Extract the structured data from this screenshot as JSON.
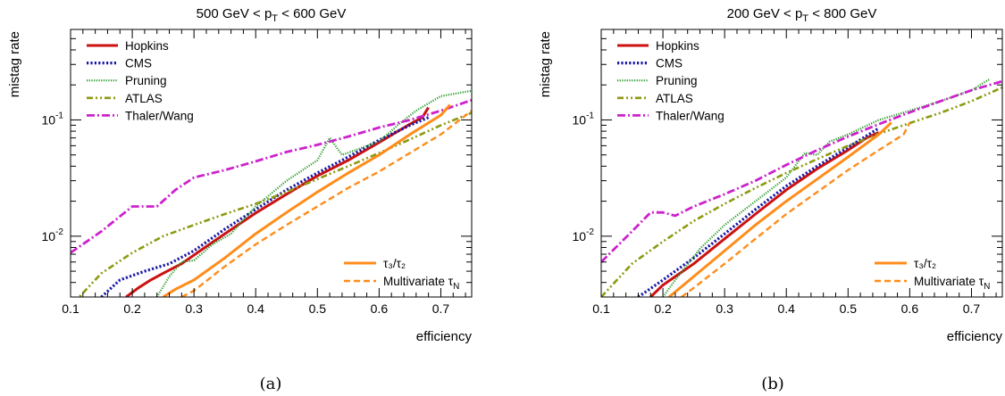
{
  "chart_data": [
    {
      "type": "line",
      "title_main": "500 GeV < p",
      "title_sub": "T",
      "title_rest": " < 600 GeV",
      "xlabel": "efficiency",
      "ylabel": "mistag rate",
      "caption": "(a)",
      "xlim": [
        0.1,
        0.75
      ],
      "ylim": [
        0.003,
        0.6
      ],
      "yscale": "log",
      "x_ticks": [
        "0.1",
        "0.2",
        "0.3",
        "0.4",
        "0.5",
        "0.6",
        "0.7"
      ],
      "y_ticks": [
        {
          "base": "10",
          "exp": "-2"
        },
        {
          "base": "10",
          "exp": "-1"
        }
      ],
      "legend_top": [
        {
          "name": "Hopkins",
          "color": "#cc1111",
          "dash": "solid"
        },
        {
          "name": "CMS",
          "color": "#1a1aa6",
          "dash": "dot"
        },
        {
          "name": "Pruning",
          "color": "#2a9a2a",
          "dash": "fine-dot"
        },
        {
          "name": "ATLAS",
          "color": "#8c9a10",
          "dash": "dash-dot-dot"
        },
        {
          "name": "Thaler/Wang",
          "color": "#cc22cc",
          "dash": "dash-dot"
        }
      ],
      "legend_bottom": [
        {
          "name": "τ₃/τ₂",
          "color": "#ff8c1a",
          "dash": "solid"
        },
        {
          "name": "Multivariate τ",
          "sub": "N",
          "color": "#ff8c1a",
          "dash": "dash"
        }
      ],
      "series": [
        {
          "name": "Hopkins",
          "points": [
            [
              0.19,
              0.003
            ],
            [
              0.21,
              0.0036
            ],
            [
              0.23,
              0.0042
            ],
            [
              0.25,
              0.0048
            ],
            [
              0.28,
              0.0058
            ],
            [
              0.31,
              0.0075
            ],
            [
              0.35,
              0.0105
            ],
            [
              0.4,
              0.0158
            ],
            [
              0.45,
              0.023
            ],
            [
              0.5,
              0.033
            ],
            [
              0.55,
              0.045
            ],
            [
              0.6,
              0.064
            ],
            [
              0.65,
              0.092
            ],
            [
              0.67,
              0.105
            ],
            [
              0.68,
              0.128
            ]
          ]
        },
        {
          "name": "CMS",
          "points": [
            [
              0.15,
              0.003
            ],
            [
              0.18,
              0.0042
            ],
            [
              0.22,
              0.005
            ],
            [
              0.26,
              0.0058
            ],
            [
              0.3,
              0.0075
            ],
            [
              0.35,
              0.0115
            ],
            [
              0.4,
              0.017
            ],
            [
              0.45,
              0.025
            ],
            [
              0.5,
              0.035
            ],
            [
              0.55,
              0.048
            ],
            [
              0.6,
              0.067
            ],
            [
              0.65,
              0.09
            ],
            [
              0.68,
              0.105
            ]
          ]
        },
        {
          "name": "Pruning",
          "points": [
            [
              0.24,
              0.003
            ],
            [
              0.26,
              0.0045
            ],
            [
              0.28,
              0.006
            ],
            [
              0.3,
              0.0062
            ],
            [
              0.33,
              0.0085
            ],
            [
              0.36,
              0.0105
            ],
            [
              0.4,
              0.018
            ],
            [
              0.45,
              0.03
            ],
            [
              0.5,
              0.045
            ],
            [
              0.52,
              0.07
            ],
            [
              0.54,
              0.05
            ],
            [
              0.6,
              0.065
            ],
            [
              0.63,
              0.09
            ],
            [
              0.66,
              0.12
            ],
            [
              0.7,
              0.16
            ],
            [
              0.75,
              0.178
            ]
          ]
        },
        {
          "name": "ATLAS",
          "points": [
            [
              0.1,
              0.0025
            ],
            [
              0.15,
              0.0048
            ],
            [
              0.2,
              0.0072
            ],
            [
              0.25,
              0.01
            ],
            [
              0.3,
              0.0125
            ],
            [
              0.35,
              0.0155
            ],
            [
              0.4,
              0.019
            ],
            [
              0.45,
              0.024
            ],
            [
              0.5,
              0.031
            ],
            [
              0.55,
              0.04
            ],
            [
              0.6,
              0.052
            ],
            [
              0.65,
              0.068
            ],
            [
              0.7,
              0.09
            ],
            [
              0.75,
              0.115
            ]
          ]
        },
        {
          "name": "Thaler/Wang",
          "points": [
            [
              0.1,
              0.0072
            ],
            [
              0.15,
              0.011
            ],
            [
              0.2,
              0.018
            ],
            [
              0.22,
              0.018
            ],
            [
              0.24,
              0.018
            ],
            [
              0.27,
              0.025
            ],
            [
              0.3,
              0.032
            ],
            [
              0.35,
              0.037
            ],
            [
              0.4,
              0.044
            ],
            [
              0.45,
              0.053
            ],
            [
              0.5,
              0.061
            ],
            [
              0.55,
              0.072
            ],
            [
              0.6,
              0.086
            ],
            [
              0.65,
              0.1
            ],
            [
              0.7,
              0.12
            ],
            [
              0.75,
              0.148
            ]
          ]
        },
        {
          "name": "τ₃/τ₂",
          "points": [
            [
              0.25,
              0.003
            ],
            [
              0.27,
              0.0035
            ],
            [
              0.3,
              0.0042
            ],
            [
              0.35,
              0.0065
            ],
            [
              0.4,
              0.0105
            ],
            [
              0.45,
              0.016
            ],
            [
              0.5,
              0.024
            ],
            [
              0.55,
              0.035
            ],
            [
              0.6,
              0.05
            ],
            [
              0.65,
              0.075
            ],
            [
              0.7,
              0.11
            ],
            [
              0.715,
              0.135
            ]
          ]
        },
        {
          "name": "Multivariate τN",
          "points": [
            [
              0.28,
              0.003
            ],
            [
              0.3,
              0.0034
            ],
            [
              0.35,
              0.0055
            ],
            [
              0.4,
              0.0085
            ],
            [
              0.45,
              0.0125
            ],
            [
              0.5,
              0.018
            ],
            [
              0.55,
              0.026
            ],
            [
              0.6,
              0.036
            ],
            [
              0.65,
              0.052
            ],
            [
              0.7,
              0.075
            ],
            [
              0.75,
              0.12
            ]
          ]
        }
      ]
    },
    {
      "type": "line",
      "title_main": "200 GeV < p",
      "title_sub": "T",
      "title_rest": " < 800 GeV",
      "xlabel": "efficiency",
      "ylabel": "mistag rate",
      "caption": "(b)",
      "xlim": [
        0.1,
        0.75
      ],
      "ylim": [
        0.003,
        0.6
      ],
      "yscale": "log",
      "x_ticks": [
        "0.1",
        "0.2",
        "0.3",
        "0.4",
        "0.5",
        "0.6",
        "0.7"
      ],
      "y_ticks": [
        {
          "base": "10",
          "exp": "-2"
        },
        {
          "base": "10",
          "exp": "-1"
        }
      ],
      "legend_top": [
        {
          "name": "Hopkins",
          "color": "#cc1111",
          "dash": "solid"
        },
        {
          "name": "CMS",
          "color": "#1a1aa6",
          "dash": "dot"
        },
        {
          "name": "Pruning",
          "color": "#2a9a2a",
          "dash": "fine-dot"
        },
        {
          "name": "ATLAS",
          "color": "#8c9a10",
          "dash": "dash-dot-dot"
        },
        {
          "name": "Thaler/Wang",
          "color": "#cc22cc",
          "dash": "dash-dot"
        }
      ],
      "legend_bottom": [
        {
          "name": "τ₃/τ₂",
          "color": "#ff8c1a",
          "dash": "solid"
        },
        {
          "name": "Multivariate τ",
          "sub": "N",
          "color": "#ff8c1a",
          "dash": "dash"
        }
      ],
      "series": [
        {
          "name": "Hopkins",
          "points": [
            [
              0.18,
              0.003
            ],
            [
              0.2,
              0.0038
            ],
            [
              0.25,
              0.0058
            ],
            [
              0.3,
              0.0095
            ],
            [
              0.35,
              0.0155
            ],
            [
              0.4,
              0.025
            ],
            [
              0.45,
              0.038
            ],
            [
              0.5,
              0.055
            ],
            [
              0.53,
              0.07
            ],
            [
              0.55,
              0.078
            ]
          ]
        },
        {
          "name": "CMS",
          "points": [
            [
              0.16,
              0.003
            ],
            [
              0.2,
              0.0042
            ],
            [
              0.25,
              0.0065
            ],
            [
              0.3,
              0.0105
            ],
            [
              0.35,
              0.017
            ],
            [
              0.4,
              0.027
            ],
            [
              0.45,
              0.04
            ],
            [
              0.5,
              0.058
            ],
            [
              0.55,
              0.085
            ]
          ]
        },
        {
          "name": "Pruning",
          "points": [
            [
              0.2,
              0.003
            ],
            [
              0.22,
              0.0042
            ],
            [
              0.26,
              0.0078
            ],
            [
              0.3,
              0.0125
            ],
            [
              0.35,
              0.02
            ],
            [
              0.4,
              0.032
            ],
            [
              0.43,
              0.052
            ],
            [
              0.45,
              0.05
            ],
            [
              0.47,
              0.065
            ],
            [
              0.5,
              0.075
            ],
            [
              0.55,
              0.1
            ],
            [
              0.6,
              0.12
            ],
            [
              0.65,
              0.145
            ],
            [
              0.7,
              0.18
            ],
            [
              0.73,
              0.225
            ]
          ]
        },
        {
          "name": "ATLAS",
          "points": [
            [
              0.1,
              0.003
            ],
            [
              0.15,
              0.0058
            ],
            [
              0.2,
              0.009
            ],
            [
              0.25,
              0.0135
            ],
            [
              0.3,
              0.019
            ],
            [
              0.35,
              0.026
            ],
            [
              0.4,
              0.035
            ],
            [
              0.45,
              0.046
            ],
            [
              0.5,
              0.06
            ],
            [
              0.55,
              0.076
            ],
            [
              0.6,
              0.094
            ],
            [
              0.65,
              0.115
            ],
            [
              0.7,
              0.145
            ],
            [
              0.75,
              0.19
            ]
          ]
        },
        {
          "name": "Thaler/Wang",
          "points": [
            [
              0.1,
              0.006
            ],
            [
              0.15,
              0.011
            ],
            [
              0.18,
              0.016
            ],
            [
              0.2,
              0.016
            ],
            [
              0.22,
              0.015
            ],
            [
              0.25,
              0.018
            ],
            [
              0.3,
              0.023
            ],
            [
              0.35,
              0.03
            ],
            [
              0.4,
              0.041
            ],
            [
              0.45,
              0.055
            ],
            [
              0.5,
              0.072
            ],
            [
              0.55,
              0.092
            ],
            [
              0.6,
              0.116
            ],
            [
              0.65,
              0.145
            ],
            [
              0.7,
              0.18
            ],
            [
              0.75,
              0.215
            ]
          ]
        },
        {
          "name": "τ₃/τ₂",
          "points": [
            [
              0.21,
              0.003
            ],
            [
              0.25,
              0.0045
            ],
            [
              0.3,
              0.0075
            ],
            [
              0.35,
              0.0125
            ],
            [
              0.4,
              0.02
            ],
            [
              0.45,
              0.031
            ],
            [
              0.5,
              0.048
            ],
            [
              0.55,
              0.075
            ],
            [
              0.57,
              0.095
            ]
          ]
        },
        {
          "name": "Multivariate τN",
          "points": [
            [
              0.23,
              0.003
            ],
            [
              0.25,
              0.0036
            ],
            [
              0.3,
              0.0058
            ],
            [
              0.35,
              0.0095
            ],
            [
              0.4,
              0.0155
            ],
            [
              0.45,
              0.024
            ],
            [
              0.5,
              0.037
            ],
            [
              0.55,
              0.055
            ],
            [
              0.59,
              0.075
            ],
            [
              0.6,
              0.095
            ]
          ]
        }
      ]
    }
  ]
}
